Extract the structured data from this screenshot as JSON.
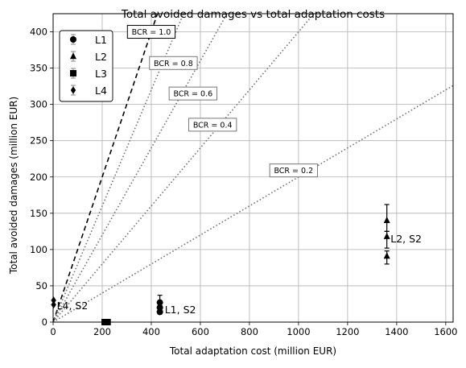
{
  "chart_data": {
    "type": "scatter",
    "title": "Total avoided damages vs total adaptation costs",
    "xlabel": "Total adaptation cost (million EUR)",
    "ylabel": "Total avoided damages (million EUR)",
    "xlim": [
      0,
      1630
    ],
    "ylim": [
      0,
      425
    ],
    "xticks": [
      0,
      200,
      400,
      600,
      800,
      1000,
      1200,
      1400,
      1600
    ],
    "yticks": [
      0,
      50,
      100,
      150,
      200,
      250,
      300,
      350,
      400
    ],
    "grid": true,
    "legend_position": "top-left",
    "series": [
      {
        "name": "L1",
        "marker": "circle",
        "points": [
          {
            "x": 435,
            "y": 27,
            "yerr_low": 20,
            "yerr_high": 37
          },
          {
            "x": 435,
            "y": 20
          },
          {
            "x": 435,
            "y": 14
          }
        ]
      },
      {
        "name": "L2",
        "marker": "triangle",
        "points": [
          {
            "x": 1360,
            "y": 140,
            "yerr_low": 125,
            "yerr_high": 162
          },
          {
            "x": 1360,
            "y": 118,
            "yerr_low": 102,
            "yerr_high": 125
          },
          {
            "x": 1360,
            "y": 91,
            "yerr_low": 80,
            "yerr_high": 98
          }
        ]
      },
      {
        "name": "L3",
        "marker": "square",
        "points": [
          {
            "x": 210,
            "y": 0
          },
          {
            "x": 222,
            "y": 0
          }
        ]
      },
      {
        "name": "L4",
        "marker": "diamond",
        "points": [
          {
            "x": 2,
            "y": 30
          },
          {
            "x": 2,
            "y": 24
          }
        ]
      }
    ],
    "bcr_lines": [
      {
        "label": "BCR = 1.0",
        "ratio": 1.0,
        "style": "dashed",
        "label_x": 400,
        "label_y": 400
      },
      {
        "label": "BCR = 0.8",
        "ratio": 0.8,
        "style": "dotted",
        "label_x": 490,
        "label_y": 357
      },
      {
        "label": "BCR = 0.6",
        "ratio": 0.6,
        "style": "dotted",
        "label_x": 570,
        "label_y": 315
      },
      {
        "label": "BCR = 0.4",
        "ratio": 0.4,
        "style": "dotted",
        "label_x": 650,
        "label_y": 272
      },
      {
        "label": "BCR = 0.2",
        "ratio": 0.2,
        "style": "dotted",
        "label_x": 980,
        "label_y": 209
      }
    ],
    "annotations": [
      {
        "text": "L4, S2",
        "x": 15,
        "y": 18
      },
      {
        "text": "L1, S2",
        "x": 455,
        "y": 12
      },
      {
        "text": "L2, S2",
        "x": 1375,
        "y": 110
      }
    ]
  }
}
